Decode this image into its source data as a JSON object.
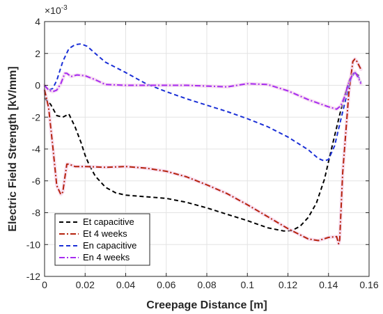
{
  "chart_data": {
    "type": "line",
    "title": "",
    "xlabel": "Creepage Distance [m]",
    "ylabel": "Electric Field Strength [kV/mm]",
    "y_multiplier_label": "×10",
    "y_multiplier_exponent": "-3",
    "xlim": [
      0,
      0.16
    ],
    "ylim": [
      -12,
      4
    ],
    "xticks": [
      "0",
      "0.02",
      "0.04",
      "0.06",
      "0.08",
      "0.1",
      "0.12",
      "0.14",
      "0.16"
    ],
    "xtick_values": [
      0,
      0.02,
      0.04,
      0.06,
      0.08,
      0.1,
      0.12,
      0.14,
      0.16
    ],
    "yticks": [
      "4",
      "2",
      "0",
      "-2",
      "-4",
      "-6",
      "-8",
      "-10",
      "-12"
    ],
    "ytick_values": [
      4,
      2,
      0,
      -2,
      -4,
      -6,
      -8,
      -10,
      -12
    ],
    "grid": true,
    "legend_position": "bottom-left",
    "series": [
      {
        "name": "Et capacitive",
        "color": "#000000",
        "style": "dashed",
        "x": [
          0,
          0.003,
          0.006,
          0.009,
          0.012,
          0.015,
          0.018,
          0.02,
          0.022,
          0.025,
          0.03,
          0.035,
          0.04,
          0.05,
          0.06,
          0.07,
          0.08,
          0.09,
          0.1,
          0.11,
          0.118,
          0.122,
          0.126,
          0.13,
          0.134,
          0.138,
          0.142,
          0.146,
          0.149,
          0.151,
          0.153,
          0.155
        ],
        "y": [
          -0.8,
          -1.2,
          -1.9,
          -2.0,
          -1.8,
          -2.6,
          -3.6,
          -4.4,
          -5.0,
          -5.7,
          -6.4,
          -6.75,
          -6.9,
          -7.0,
          -7.1,
          -7.35,
          -7.7,
          -8.1,
          -8.5,
          -8.95,
          -9.15,
          -9.12,
          -8.85,
          -8.3,
          -7.4,
          -5.9,
          -3.7,
          -1.6,
          -0.2,
          0.6,
          0.8,
          0.6
        ]
      },
      {
        "name": "Et 4 weeks",
        "color": "#b5220c",
        "style": "dashdot",
        "x": [
          0,
          0.002,
          0.004,
          0.006,
          0.008,
          0.009,
          0.01,
          0.011,
          0.012,
          0.013,
          0.015,
          0.02,
          0.03,
          0.04,
          0.05,
          0.06,
          0.07,
          0.08,
          0.09,
          0.1,
          0.11,
          0.12,
          0.13,
          0.135,
          0.14,
          0.144,
          0.145,
          0.1455,
          0.147,
          0.15,
          0.152,
          0.153,
          0.154,
          0.156
        ],
        "y": [
          -0.3,
          -1.4,
          -3.8,
          -6.3,
          -6.85,
          -6.7,
          -5.8,
          -4.95,
          -4.95,
          -5.0,
          -5.1,
          -5.1,
          -5.15,
          -5.1,
          -5.2,
          -5.4,
          -5.75,
          -6.25,
          -6.8,
          -7.5,
          -8.25,
          -9.0,
          -9.65,
          -9.75,
          -9.55,
          -9.5,
          -9.95,
          -9.7,
          -5.5,
          -0.5,
          1.5,
          1.65,
          1.5,
          1.0
        ]
      },
      {
        "name": "En capacitive",
        "color": "#1a2fd6",
        "style": "dashed",
        "x": [
          0,
          0.002,
          0.004,
          0.006,
          0.009,
          0.012,
          0.015,
          0.018,
          0.021,
          0.025,
          0.03,
          0.04,
          0.05,
          0.06,
          0.07,
          0.08,
          0.09,
          0.1,
          0.11,
          0.12,
          0.13,
          0.135,
          0.138,
          0.14,
          0.143,
          0.146,
          0.149,
          0.151,
          0.153,
          0.155,
          0.156
        ],
        "y": [
          0,
          -0.3,
          -0.2,
          0.3,
          1.5,
          2.3,
          2.55,
          2.6,
          2.45,
          2.0,
          1.45,
          0.8,
          0.1,
          -0.4,
          -0.85,
          -1.25,
          -1.65,
          -2.1,
          -2.6,
          -3.25,
          -4.05,
          -4.6,
          -4.75,
          -4.65,
          -3.8,
          -2.2,
          -0.6,
          0.4,
          0.8,
          0.5,
          0.2
        ]
      },
      {
        "name": "En 4 weeks",
        "color": "#a52af0",
        "style": "dashdot",
        "x": [
          0,
          0.002,
          0.004,
          0.006,
          0.008,
          0.01,
          0.011,
          0.013,
          0.016,
          0.02,
          0.025,
          0.03,
          0.04,
          0.05,
          0.06,
          0.07,
          0.08,
          0.09,
          0.1,
          0.11,
          0.12,
          0.13,
          0.14,
          0.144,
          0.146,
          0.148,
          0.15,
          0.152,
          0.153,
          0.155,
          0.156
        ],
        "y": [
          0,
          -0.3,
          -0.4,
          -0.3,
          0.1,
          0.75,
          0.75,
          0.55,
          0.65,
          0.6,
          0.35,
          0.05,
          0.0,
          0.0,
          0.0,
          0.0,
          -0.05,
          -0.1,
          0.1,
          0.05,
          -0.35,
          -0.9,
          -1.35,
          -1.5,
          -1.3,
          -0.7,
          0.2,
          0.7,
          0.85,
          0.4,
          0.1
        ]
      }
    ]
  }
}
